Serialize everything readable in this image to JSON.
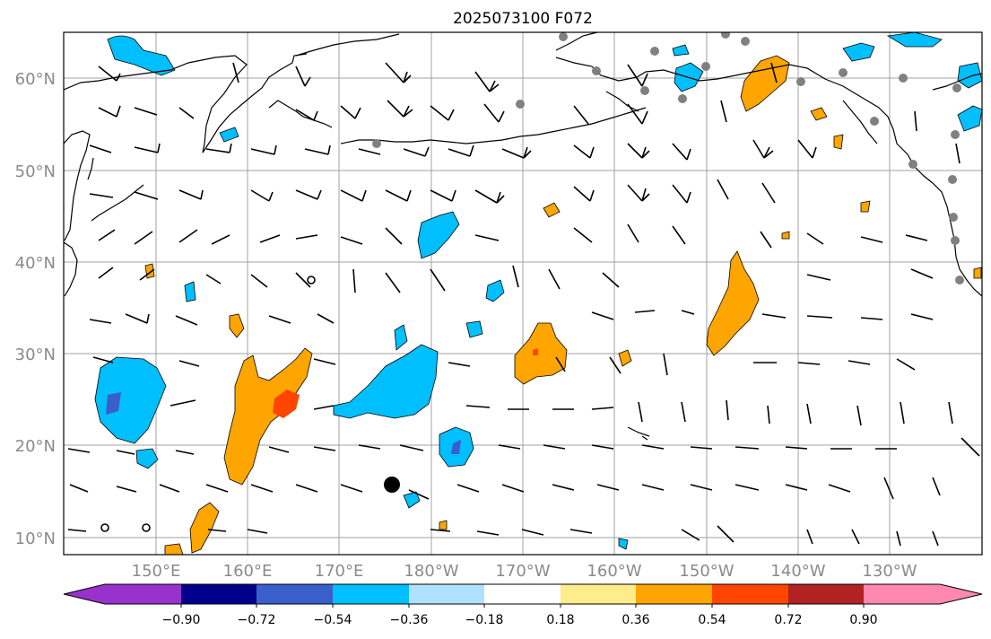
{
  "title": "2025073100 F072",
  "latitude_labels": [
    "60°N",
    "50°N",
    "40°N",
    "30°N",
    "20°N",
    "10°N"
  ],
  "longitude_labels": [
    "150°E",
    "160°E",
    "170°E",
    "180°W",
    "170°W",
    "160°W",
    "150°W",
    "140°W",
    "130°W"
  ],
  "colorbar": {
    "tick_labels": [
      "−0.90",
      "−0.72",
      "−0.54",
      "−0.36",
      "−0.18",
      "0.18",
      "0.36",
      "0.54",
      "0.72",
      "0.90"
    ],
    "colors": [
      "#9932CC",
      "#00008B",
      "#3A5FCD",
      "#00BFFF",
      "#B0E2FF",
      "#FFFFFF",
      "#FFEC8B",
      "#FFA500",
      "#FF4500",
      "#B22222",
      "#FF88B0"
    ]
  },
  "map": {
    "background": "#ffffff",
    "gridline_color": "#a0a0a0",
    "coastline_color": "#000000",
    "station_marker_color": "#808080"
  }
}
